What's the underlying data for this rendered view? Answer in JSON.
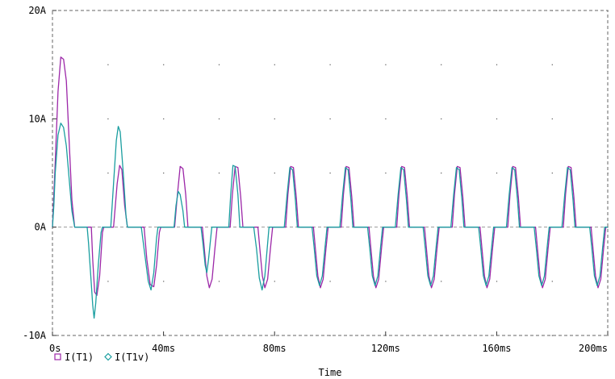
{
  "chart_data": {
    "type": "line",
    "title": "",
    "xlabel": "Time",
    "ylabel": "",
    "xlim": [
      0,
      200
    ],
    "ylim": [
      -10,
      20
    ],
    "x_unit": "ms",
    "y_unit": "A",
    "xticks": [
      "0s",
      "40ms",
      "80ms",
      "120ms",
      "160ms",
      "200ms"
    ],
    "yticks": [
      "-10A",
      "0A",
      "10A",
      "20A"
    ],
    "grid": "dotted",
    "legend_position": "bottom-left",
    "series": [
      {
        "name": "I(T1)",
        "marker": "square",
        "color": "#9c27a8",
        "points": [
          [
            0,
            0
          ],
          [
            1,
            6
          ],
          [
            2,
            12.5
          ],
          [
            3,
            15.7
          ],
          [
            4,
            15.5
          ],
          [
            5,
            13.5
          ],
          [
            6,
            8
          ],
          [
            7,
            2.5
          ],
          [
            8,
            0
          ],
          [
            14,
            0
          ],
          [
            14.5,
            -3
          ],
          [
            15.2,
            -6
          ],
          [
            16,
            -6.3
          ],
          [
            17,
            -4.5
          ],
          [
            18,
            -0.5
          ],
          [
            18.5,
            0
          ],
          [
            22,
            0
          ],
          [
            23.3,
            4
          ],
          [
            24.2,
            5.7
          ],
          [
            25,
            5.3
          ],
          [
            26,
            2
          ],
          [
            27,
            0
          ],
          [
            33,
            0
          ],
          [
            34,
            -3
          ],
          [
            35.2,
            -5.3
          ],
          [
            36.5,
            -5.5
          ],
          [
            37.5,
            -3.5
          ],
          [
            38.5,
            -0.5
          ],
          [
            39,
            0
          ],
          [
            44,
            0
          ],
          [
            45,
            3
          ],
          [
            46,
            5.6
          ],
          [
            47,
            5.4
          ],
          [
            48,
            3
          ],
          [
            48.8,
            0
          ],
          [
            54,
            0
          ],
          [
            54.7,
            -2
          ],
          [
            55.6,
            -4.5
          ],
          [
            56.5,
            -5.6
          ],
          [
            57.5,
            -4.8
          ],
          [
            58.5,
            -2
          ],
          [
            59.3,
            0
          ],
          [
            64,
            0
          ],
          [
            64.8,
            3
          ],
          [
            65.8,
            5.6
          ],
          [
            66.8,
            5.5
          ],
          [
            67.8,
            2.8
          ],
          [
            68.6,
            0
          ],
          [
            74,
            0
          ],
          [
            74.7,
            -2
          ],
          [
            75.6,
            -4.5
          ],
          [
            76.5,
            -5.6
          ],
          [
            77.5,
            -4.8
          ],
          [
            78.5,
            -2
          ],
          [
            79.3,
            0
          ],
          [
            84,
            0
          ],
          [
            84.8,
            3
          ],
          [
            85.8,
            5.6
          ],
          [
            86.8,
            5.5
          ],
          [
            87.8,
            2.8
          ],
          [
            88.6,
            0
          ],
          [
            94,
            0
          ],
          [
            94.7,
            -2
          ],
          [
            95.6,
            -4.5
          ],
          [
            96.5,
            -5.6
          ],
          [
            97.5,
            -4.8
          ],
          [
            98.5,
            -2
          ],
          [
            99.3,
            0
          ],
          [
            104,
            0
          ],
          [
            104.8,
            3
          ],
          [
            105.8,
            5.6
          ],
          [
            106.8,
            5.5
          ],
          [
            107.8,
            2.8
          ],
          [
            108.6,
            0
          ],
          [
            114,
            0
          ],
          [
            114.7,
            -2
          ],
          [
            115.6,
            -4.5
          ],
          [
            116.5,
            -5.6
          ],
          [
            117.5,
            -4.8
          ],
          [
            118.5,
            -2
          ],
          [
            119.3,
            0
          ],
          [
            124,
            0
          ],
          [
            124.8,
            3
          ],
          [
            125.8,
            5.6
          ],
          [
            126.8,
            5.5
          ],
          [
            127.8,
            2.8
          ],
          [
            128.6,
            0
          ],
          [
            134,
            0
          ],
          [
            134.7,
            -2
          ],
          [
            135.6,
            -4.5
          ],
          [
            136.5,
            -5.6
          ],
          [
            137.5,
            -4.8
          ],
          [
            138.5,
            -2
          ],
          [
            139.3,
            0
          ],
          [
            144,
            0
          ],
          [
            144.8,
            3
          ],
          [
            145.8,
            5.6
          ],
          [
            146.8,
            5.5
          ],
          [
            147.8,
            2.8
          ],
          [
            148.6,
            0
          ],
          [
            154,
            0
          ],
          [
            154.7,
            -2
          ],
          [
            155.6,
            -4.5
          ],
          [
            156.5,
            -5.6
          ],
          [
            157.5,
            -4.8
          ],
          [
            158.5,
            -2
          ],
          [
            159.3,
            0
          ],
          [
            164,
            0
          ],
          [
            164.8,
            3
          ],
          [
            165.8,
            5.6
          ],
          [
            166.8,
            5.5
          ],
          [
            167.8,
            2.8
          ],
          [
            168.6,
            0
          ],
          [
            174,
            0
          ],
          [
            174.7,
            -2
          ],
          [
            175.6,
            -4.5
          ],
          [
            176.5,
            -5.6
          ],
          [
            177.5,
            -4.8
          ],
          [
            178.5,
            -2
          ],
          [
            179.3,
            0
          ],
          [
            184,
            0
          ],
          [
            184.8,
            3
          ],
          [
            185.8,
            5.6
          ],
          [
            186.8,
            5.5
          ],
          [
            187.8,
            2.8
          ],
          [
            188.6,
            0
          ],
          [
            194,
            0
          ],
          [
            194.7,
            -2
          ],
          [
            195.6,
            -4.5
          ],
          [
            196.5,
            -5.6
          ],
          [
            197.5,
            -4.8
          ],
          [
            198.5,
            -2
          ],
          [
            199.3,
            0
          ],
          [
            200,
            0
          ]
        ]
      },
      {
        "name": "I(T1v)",
        "marker": "diamond",
        "color": "#1a9ea0",
        "points": [
          [
            0,
            0
          ],
          [
            0.5,
            2
          ],
          [
            1,
            5
          ],
          [
            2,
            8.5
          ],
          [
            3,
            9.6
          ],
          [
            4,
            9.2
          ],
          [
            5,
            7.5
          ],
          [
            6,
            4.5
          ],
          [
            7,
            1.5
          ],
          [
            8,
            0
          ],
          [
            12.5,
            0
          ],
          [
            13,
            -1.5
          ],
          [
            13.8,
            -4.5
          ],
          [
            14.5,
            -7.2
          ],
          [
            15,
            -8.4
          ],
          [
            15.6,
            -7
          ],
          [
            16.5,
            -3.5
          ],
          [
            17.5,
            -0.5
          ],
          [
            18,
            0
          ],
          [
            21,
            0
          ],
          [
            22,
            4
          ],
          [
            23,
            8
          ],
          [
            23.7,
            9.3
          ],
          [
            24.4,
            8.8
          ],
          [
            25.5,
            5
          ],
          [
            26.5,
            1
          ],
          [
            27,
            0
          ],
          [
            32,
            0
          ],
          [
            33,
            -2
          ],
          [
            34.5,
            -5
          ],
          [
            35.5,
            -5.8
          ],
          [
            36.5,
            -4.2
          ],
          [
            37.5,
            -1
          ],
          [
            38,
            0
          ],
          [
            43.8,
            0
          ],
          [
            44.5,
            2
          ],
          [
            45.3,
            3.3
          ],
          [
            46,
            3
          ],
          [
            47,
            1.5
          ],
          [
            47.6,
            0
          ],
          [
            53.5,
            0
          ],
          [
            54.2,
            -1.5
          ],
          [
            55,
            -3.5
          ],
          [
            55.6,
            -4.2
          ],
          [
            56.2,
            -3
          ],
          [
            57,
            -1
          ],
          [
            57.4,
            0
          ],
          [
            63.5,
            0
          ],
          [
            64.2,
            3
          ],
          [
            65,
            5.7
          ],
          [
            65.8,
            5.6
          ],
          [
            66.8,
            3
          ],
          [
            67.5,
            0
          ],
          [
            72.5,
            0
          ],
          [
            73.5,
            -2
          ],
          [
            74.5,
            -4.7
          ],
          [
            75.5,
            -5.8
          ],
          [
            76.5,
            -4.5
          ],
          [
            77.5,
            -1.5
          ],
          [
            78,
            0
          ],
          [
            83.5,
            0
          ],
          [
            84.5,
            3
          ],
          [
            85.5,
            5.5
          ],
          [
            86.5,
            5.3
          ],
          [
            87.5,
            2.5
          ],
          [
            88.2,
            0
          ],
          [
            93.5,
            0
          ],
          [
            94.3,
            -2
          ],
          [
            95.2,
            -4.5
          ],
          [
            96.2,
            -5.4
          ],
          [
            97.2,
            -4.5
          ],
          [
            98.2,
            -1.8
          ],
          [
            98.9,
            0
          ],
          [
            103.5,
            0
          ],
          [
            104.5,
            3
          ],
          [
            105.5,
            5.5
          ],
          [
            106.5,
            5.3
          ],
          [
            107.5,
            2.5
          ],
          [
            108.2,
            0
          ],
          [
            113.5,
            0
          ],
          [
            114.3,
            -2
          ],
          [
            115.2,
            -4.5
          ],
          [
            116.2,
            -5.4
          ],
          [
            117.2,
            -4.5
          ],
          [
            118.2,
            -1.8
          ],
          [
            118.9,
            0
          ],
          [
            123.5,
            0
          ],
          [
            124.5,
            3
          ],
          [
            125.5,
            5.5
          ],
          [
            126.5,
            5.3
          ],
          [
            127.5,
            2.5
          ],
          [
            128.2,
            0
          ],
          [
            133.5,
            0
          ],
          [
            134.3,
            -2
          ],
          [
            135.2,
            -4.5
          ],
          [
            136.2,
            -5.4
          ],
          [
            137.2,
            -4.5
          ],
          [
            138.2,
            -1.8
          ],
          [
            138.9,
            0
          ],
          [
            143.5,
            0
          ],
          [
            144.5,
            3
          ],
          [
            145.5,
            5.5
          ],
          [
            146.5,
            5.3
          ],
          [
            147.5,
            2.5
          ],
          [
            148.2,
            0
          ],
          [
            153.5,
            0
          ],
          [
            154.3,
            -2
          ],
          [
            155.2,
            -4.5
          ],
          [
            156.2,
            -5.4
          ],
          [
            157.2,
            -4.5
          ],
          [
            158.2,
            -1.8
          ],
          [
            158.9,
            0
          ],
          [
            163.5,
            0
          ],
          [
            164.5,
            3
          ],
          [
            165.5,
            5.5
          ],
          [
            166.5,
            5.3
          ],
          [
            167.5,
            2.5
          ],
          [
            168.2,
            0
          ],
          [
            173.5,
            0
          ],
          [
            174.3,
            -2
          ],
          [
            175.2,
            -4.5
          ],
          [
            176.2,
            -5.4
          ],
          [
            177.2,
            -4.5
          ],
          [
            178.2,
            -1.8
          ],
          [
            178.9,
            0
          ],
          [
            183.5,
            0
          ],
          [
            184.5,
            3
          ],
          [
            185.5,
            5.5
          ],
          [
            186.5,
            5.3
          ],
          [
            187.5,
            2.5
          ],
          [
            188.2,
            0
          ],
          [
            193.5,
            0
          ],
          [
            194.3,
            -2
          ],
          [
            195.2,
            -4.5
          ],
          [
            196.2,
            -5.4
          ],
          [
            197.2,
            -4.5
          ],
          [
            198.2,
            -1.8
          ],
          [
            198.9,
            0
          ],
          [
            200,
            0
          ]
        ]
      }
    ]
  }
}
